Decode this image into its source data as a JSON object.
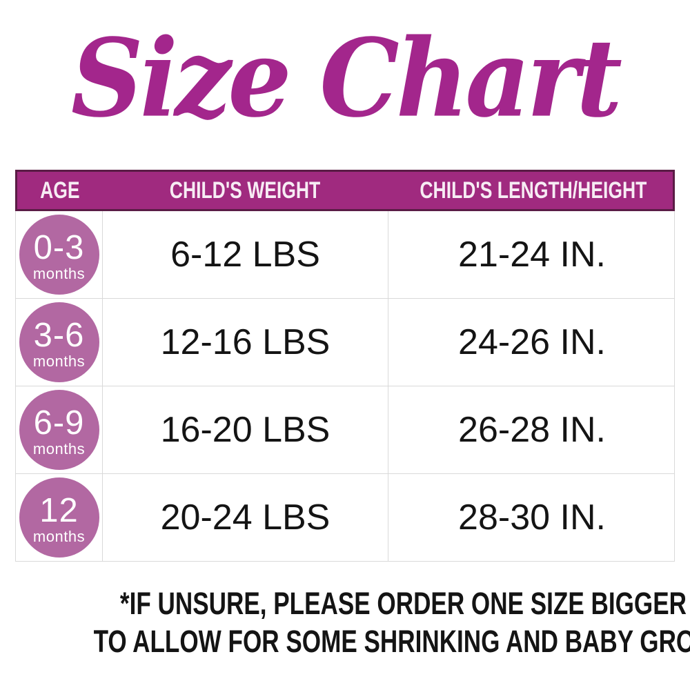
{
  "title": "Size Chart",
  "colors": {
    "title_magenta": "#a3268c",
    "header_bg": "#a02a7f",
    "header_border": "#5a1c45",
    "header_text": "#f7ecf4",
    "badge_bg": "#b268a2",
    "badge_text": "#ffffff",
    "grid_line": "#d9d9d9",
    "body_text": "#141414"
  },
  "table": {
    "headers": [
      "AGE",
      "CHILD'S WEIGHT",
      "CHILD'S LENGTH/HEIGHT"
    ],
    "rows": [
      {
        "age": "0-3",
        "age_unit": "months",
        "weight": "6-12 LBS",
        "length": "21-24 IN."
      },
      {
        "age": "3-6",
        "age_unit": "months",
        "weight": "12-16 LBS",
        "length": "24-26 IN."
      },
      {
        "age": "6-9",
        "age_unit": "months",
        "weight": "16-20 LBS",
        "length": "26-28 IN."
      },
      {
        "age": "12",
        "age_unit": "months",
        "weight": "20-24 LBS",
        "length": "28-30 IN."
      }
    ]
  },
  "footnote": {
    "line1": "*IF UNSURE, PLEASE ORDER ONE SIZE BIGGER THAN WHAT YOU NEED",
    "line2": "TO ALLOW FOR SOME SHRINKING AND BABY GROWTH."
  },
  "chart_data": {
    "type": "table",
    "title": "Size Chart",
    "columns": [
      "AGE",
      "CHILD'S WEIGHT",
      "CHILD'S LENGTH/HEIGHT"
    ],
    "rows": [
      [
        "0-3 months",
        "6-12 LBS",
        "21-24 IN."
      ],
      [
        "3-6 months",
        "12-16 LBS",
        "24-26 IN."
      ],
      [
        "6-9 months",
        "16-20 LBS",
        "26-28 IN."
      ],
      [
        "12 months",
        "20-24 LBS",
        "28-30 IN."
      ]
    ],
    "footnote": "*IF UNSURE, PLEASE ORDER ONE SIZE BIGGER THAN WHAT YOU NEED TO ALLOW FOR SOME SHRINKING AND BABY GROWTH."
  }
}
